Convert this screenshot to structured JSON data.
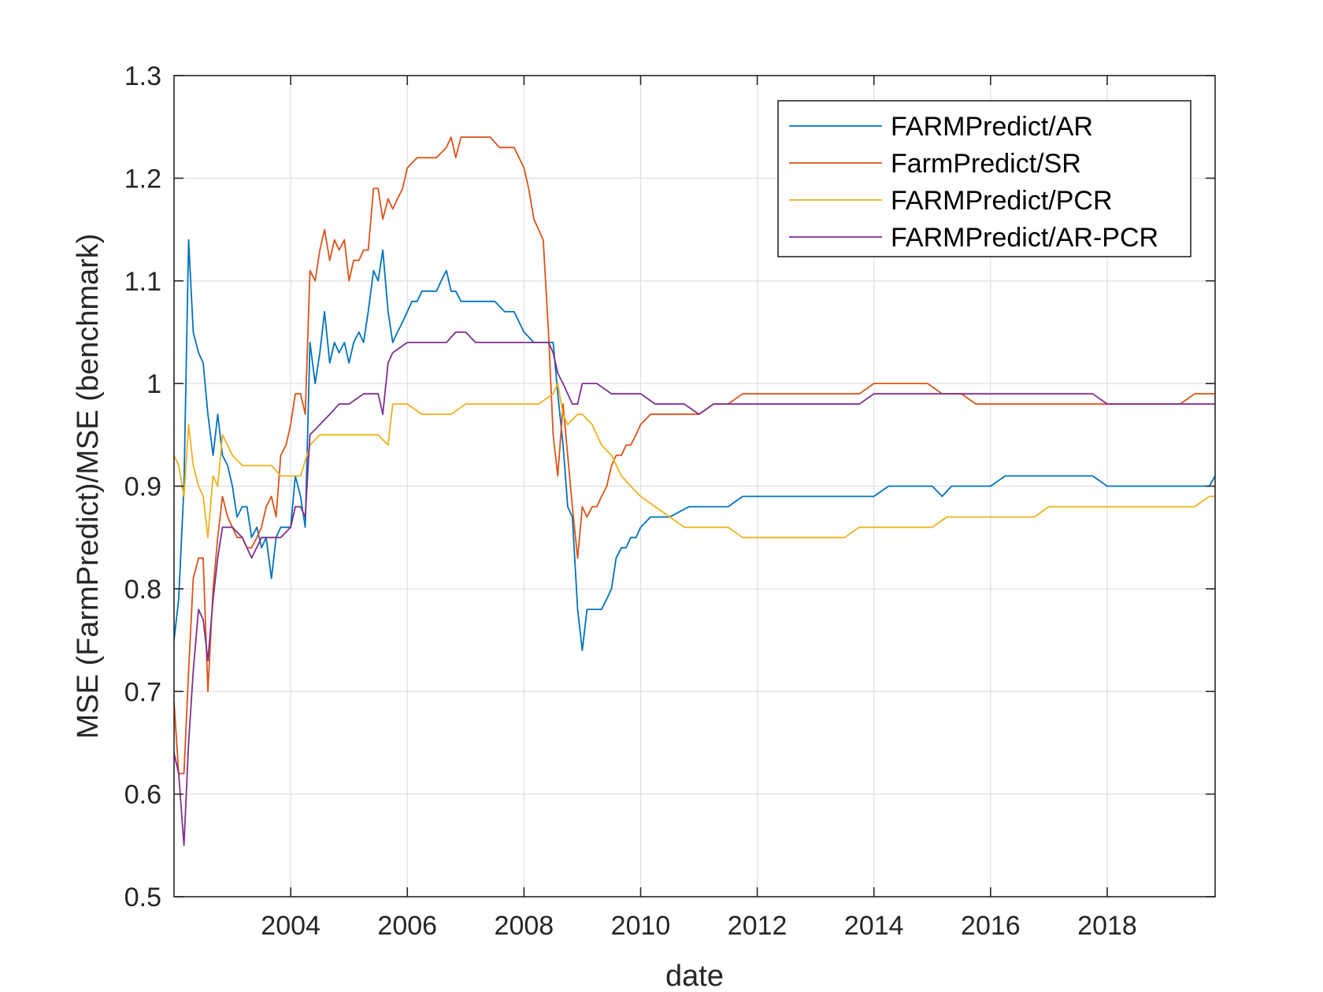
{
  "chart_data": {
    "type": "line",
    "title": "",
    "xlabel": "date",
    "ylabel": "MSE (FarmPredict)/MSE (benchmark)",
    "xlim": [
      2002.0,
      2019.85
    ],
    "ylim": [
      0.5,
      1.3
    ],
    "xticks": [
      2004,
      2006,
      2008,
      2010,
      2012,
      2014,
      2016,
      2018
    ],
    "xtick_labels": [
      "2004",
      "2006",
      "2008",
      "2010",
      "2012",
      "2014",
      "2016",
      "2018"
    ],
    "yticks": [
      0.5,
      0.6,
      0.7,
      0.8,
      0.9,
      1.0,
      1.1,
      1.2,
      1.3
    ],
    "ytick_labels": [
      "0.5",
      "0.6",
      "0.7",
      "0.8",
      "0.9",
      "1",
      "1.1",
      "1.2",
      "1.3"
    ],
    "grid": true,
    "legend_position": "top-right",
    "series": [
      {
        "name": "FARMPredict/AR",
        "color": "#0072BD",
        "x": [
          2002.0,
          2002.08,
          2002.17,
          2002.25,
          2002.33,
          2002.42,
          2002.5,
          2002.58,
          2002.67,
          2002.75,
          2002.83,
          2002.92,
          2003.0,
          2003.08,
          2003.17,
          2003.25,
          2003.33,
          2003.42,
          2003.5,
          2003.58,
          2003.67,
          2003.75,
          2003.83,
          2003.92,
          2004.0,
          2004.08,
          2004.17,
          2004.25,
          2004.33,
          2004.42,
          2004.5,
          2004.58,
          2004.67,
          2004.75,
          2004.83,
          2004.92,
          2005.0,
          2005.08,
          2005.17,
          2005.25,
          2005.33,
          2005.42,
          2005.5,
          2005.58,
          2005.67,
          2005.75,
          2005.83,
          2005.92,
          2006.0,
          2006.08,
          2006.17,
          2006.25,
          2006.33,
          2006.42,
          2006.5,
          2006.58,
          2006.67,
          2006.75,
          2006.83,
          2006.92,
          2007.0,
          2007.17,
          2007.33,
          2007.5,
          2007.67,
          2007.83,
          2008.0,
          2008.17,
          2008.33,
          2008.5,
          2008.58,
          2008.67,
          2008.75,
          2008.83,
          2008.92,
          2009.0,
          2009.08,
          2009.17,
          2009.25,
          2009.33,
          2009.42,
          2009.5,
          2009.58,
          2009.67,
          2009.75,
          2009.83,
          2009.92,
          2010.0,
          2010.17,
          2010.5,
          2010.83,
          2011.0,
          2011.25,
          2011.5,
          2011.75,
          2012.0,
          2012.25,
          2012.5,
          2012.75,
          2013.0,
          2013.25,
          2013.5,
          2013.75,
          2014.0,
          2014.25,
          2014.5,
          2014.75,
          2015.0,
          2015.17,
          2015.33,
          2015.5,
          2015.75,
          2016.0,
          2016.25,
          2016.5,
          2016.75,
          2017.0,
          2017.25,
          2017.5,
          2017.75,
          2018.0,
          2018.25,
          2018.5,
          2018.75,
          2019.0,
          2019.25,
          2019.5,
          2019.75,
          2019.85
        ],
        "y": [
          0.75,
          0.79,
          0.9,
          1.14,
          1.05,
          1.03,
          1.02,
          0.97,
          0.93,
          0.97,
          0.93,
          0.92,
          0.9,
          0.87,
          0.88,
          0.88,
          0.85,
          0.86,
          0.84,
          0.85,
          0.81,
          0.85,
          0.86,
          0.86,
          0.86,
          0.91,
          0.89,
          0.86,
          1.04,
          1.0,
          1.03,
          1.07,
          1.02,
          1.04,
          1.03,
          1.04,
          1.02,
          1.04,
          1.05,
          1.04,
          1.07,
          1.11,
          1.1,
          1.13,
          1.07,
          1.04,
          1.05,
          1.06,
          1.07,
          1.08,
          1.08,
          1.09,
          1.09,
          1.09,
          1.09,
          1.1,
          1.11,
          1.09,
          1.09,
          1.08,
          1.08,
          1.08,
          1.08,
          1.08,
          1.07,
          1.07,
          1.05,
          1.04,
          1.04,
          1.04,
          0.99,
          0.94,
          0.88,
          0.87,
          0.78,
          0.74,
          0.78,
          0.78,
          0.78,
          0.78,
          0.79,
          0.8,
          0.83,
          0.84,
          0.84,
          0.85,
          0.85,
          0.86,
          0.87,
          0.87,
          0.88,
          0.88,
          0.88,
          0.88,
          0.89,
          0.89,
          0.89,
          0.89,
          0.89,
          0.89,
          0.89,
          0.89,
          0.89,
          0.89,
          0.9,
          0.9,
          0.9,
          0.9,
          0.89,
          0.9,
          0.9,
          0.9,
          0.9,
          0.91,
          0.91,
          0.91,
          0.91,
          0.91,
          0.91,
          0.91,
          0.9,
          0.9,
          0.9,
          0.9,
          0.9,
          0.9,
          0.9,
          0.9,
          0.91
        ]
      },
      {
        "name": "FarmPredict/SR",
        "color": "#D95319",
        "x": [
          2002.0,
          2002.08,
          2002.17,
          2002.25,
          2002.33,
          2002.42,
          2002.5,
          2002.58,
          2002.67,
          2002.75,
          2002.83,
          2002.92,
          2003.0,
          2003.08,
          2003.17,
          2003.25,
          2003.33,
          2003.42,
          2003.5,
          2003.58,
          2003.67,
          2003.75,
          2003.83,
          2003.92,
          2004.0,
          2004.08,
          2004.17,
          2004.25,
          2004.33,
          2004.42,
          2004.5,
          2004.58,
          2004.67,
          2004.75,
          2004.83,
          2004.92,
          2005.0,
          2005.08,
          2005.17,
          2005.25,
          2005.33,
          2005.42,
          2005.5,
          2005.58,
          2005.67,
          2005.75,
          2005.83,
          2005.92,
          2006.0,
          2006.17,
          2006.33,
          2006.5,
          2006.67,
          2006.75,
          2006.83,
          2006.92,
          2007.0,
          2007.08,
          2007.17,
          2007.25,
          2007.42,
          2007.58,
          2007.75,
          2007.83,
          2008.0,
          2008.08,
          2008.17,
          2008.25,
          2008.33,
          2008.42,
          2008.5,
          2008.58,
          2008.67,
          2008.75,
          2008.83,
          2008.92,
          2009.0,
          2009.08,
          2009.17,
          2009.25,
          2009.33,
          2009.42,
          2009.5,
          2009.58,
          2009.67,
          2009.75,
          2009.83,
          2009.92,
          2010.0,
          2010.17,
          2010.5,
          2010.75,
          2011.0,
          2011.25,
          2011.5,
          2011.75,
          2012.0,
          2012.25,
          2012.5,
          2012.75,
          2013.0,
          2013.25,
          2013.5,
          2013.75,
          2014.0,
          2014.25,
          2014.5,
          2014.75,
          2014.92,
          2015.17,
          2015.5,
          2015.75,
          2016.0,
          2016.25,
          2016.5,
          2016.75,
          2017.0,
          2017.25,
          2017.5,
          2017.75,
          2018.0,
          2018.25,
          2018.5,
          2018.75,
          2019.0,
          2019.25,
          2019.5,
          2019.75,
          2019.85
        ],
        "y": [
          0.69,
          0.62,
          0.62,
          0.72,
          0.81,
          0.83,
          0.83,
          0.7,
          0.8,
          0.85,
          0.89,
          0.87,
          0.86,
          0.85,
          0.85,
          0.84,
          0.84,
          0.85,
          0.86,
          0.88,
          0.89,
          0.87,
          0.93,
          0.94,
          0.96,
          0.99,
          0.99,
          0.97,
          1.11,
          1.1,
          1.13,
          1.15,
          1.12,
          1.14,
          1.13,
          1.14,
          1.1,
          1.12,
          1.12,
          1.13,
          1.13,
          1.19,
          1.19,
          1.16,
          1.18,
          1.17,
          1.18,
          1.19,
          1.21,
          1.22,
          1.22,
          1.22,
          1.23,
          1.24,
          1.22,
          1.24,
          1.24,
          1.24,
          1.24,
          1.24,
          1.24,
          1.23,
          1.23,
          1.23,
          1.21,
          1.19,
          1.16,
          1.15,
          1.14,
          1.05,
          0.95,
          0.91,
          0.98,
          0.93,
          0.88,
          0.83,
          0.88,
          0.87,
          0.88,
          0.88,
          0.89,
          0.9,
          0.92,
          0.93,
          0.93,
          0.94,
          0.94,
          0.95,
          0.96,
          0.97,
          0.97,
          0.97,
          0.97,
          0.98,
          0.98,
          0.99,
          0.99,
          0.99,
          0.99,
          0.99,
          0.99,
          0.99,
          0.99,
          0.99,
          1.0,
          1.0,
          1.0,
          1.0,
          1.0,
          0.99,
          0.99,
          0.98,
          0.98,
          0.98,
          0.98,
          0.98,
          0.98,
          0.98,
          0.98,
          0.98,
          0.98,
          0.98,
          0.98,
          0.98,
          0.98,
          0.98,
          0.99,
          0.99,
          0.99
        ]
      },
      {
        "name": "FARMPredict/PCR",
        "color": "#EDB120",
        "x": [
          2002.0,
          2002.08,
          2002.17,
          2002.25,
          2002.33,
          2002.42,
          2002.5,
          2002.58,
          2002.67,
          2002.75,
          2002.83,
          2002.92,
          2003.0,
          2003.17,
          2003.33,
          2003.5,
          2003.67,
          2003.83,
          2004.0,
          2004.17,
          2004.33,
          2004.5,
          2004.67,
          2004.83,
          2005.0,
          2005.25,
          2005.5,
          2005.67,
          2005.75,
          2006.0,
          2006.25,
          2006.5,
          2006.75,
          2007.0,
          2007.25,
          2007.5,
          2007.75,
          2008.0,
          2008.25,
          2008.5,
          2008.58,
          2008.67,
          2008.75,
          2008.92,
          2009.0,
          2009.17,
          2009.33,
          2009.5,
          2009.67,
          2009.83,
          2010.0,
          2010.25,
          2010.5,
          2010.75,
          2011.0,
          2011.25,
          2011.5,
          2011.75,
          2012.0,
          2012.25,
          2012.5,
          2012.75,
          2013.0,
          2013.25,
          2013.5,
          2013.75,
          2014.0,
          2014.25,
          2014.5,
          2014.75,
          2015.0,
          2015.25,
          2015.5,
          2015.75,
          2016.0,
          2016.25,
          2016.5,
          2016.75,
          2017.0,
          2017.25,
          2017.5,
          2017.75,
          2018.0,
          2018.25,
          2018.5,
          2018.75,
          2019.0,
          2019.25,
          2019.5,
          2019.75,
          2019.85
        ],
        "y": [
          0.93,
          0.92,
          0.89,
          0.96,
          0.92,
          0.9,
          0.89,
          0.85,
          0.91,
          0.9,
          0.95,
          0.94,
          0.93,
          0.92,
          0.92,
          0.92,
          0.92,
          0.91,
          0.91,
          0.91,
          0.94,
          0.95,
          0.95,
          0.95,
          0.95,
          0.95,
          0.95,
          0.94,
          0.98,
          0.98,
          0.97,
          0.97,
          0.97,
          0.98,
          0.98,
          0.98,
          0.98,
          0.98,
          0.98,
          0.99,
          1.0,
          0.97,
          0.96,
          0.97,
          0.97,
          0.96,
          0.94,
          0.93,
          0.91,
          0.9,
          0.89,
          0.88,
          0.87,
          0.86,
          0.86,
          0.86,
          0.86,
          0.85,
          0.85,
          0.85,
          0.85,
          0.85,
          0.85,
          0.85,
          0.85,
          0.86,
          0.86,
          0.86,
          0.86,
          0.86,
          0.86,
          0.87,
          0.87,
          0.87,
          0.87,
          0.87,
          0.87,
          0.87,
          0.88,
          0.88,
          0.88,
          0.88,
          0.88,
          0.88,
          0.88,
          0.88,
          0.88,
          0.88,
          0.88,
          0.89,
          0.89
        ]
      },
      {
        "name": "FARMPredict/AR-PCR",
        "color": "#7E2F8E",
        "x": [
          2002.0,
          2002.08,
          2002.17,
          2002.25,
          2002.33,
          2002.42,
          2002.5,
          2002.58,
          2002.67,
          2002.75,
          2002.83,
          2002.92,
          2003.0,
          2003.17,
          2003.33,
          2003.5,
          2003.67,
          2003.83,
          2004.0,
          2004.08,
          2004.17,
          2004.25,
          2004.33,
          2004.5,
          2004.67,
          2004.83,
          2005.0,
          2005.25,
          2005.5,
          2005.58,
          2005.67,
          2005.75,
          2006.0,
          2006.25,
          2006.5,
          2006.67,
          2006.83,
          2007.0,
          2007.17,
          2007.5,
          2007.75,
          2008.0,
          2008.25,
          2008.42,
          2008.5,
          2008.58,
          2008.67,
          2008.75,
          2008.83,
          2008.92,
          2009.0,
          2009.08,
          2009.25,
          2009.5,
          2009.75,
          2010.0,
          2010.25,
          2010.5,
          2010.75,
          2011.0,
          2011.25,
          2011.5,
          2011.75,
          2012.0,
          2012.25,
          2012.5,
          2012.75,
          2013.0,
          2013.25,
          2013.5,
          2013.75,
          2014.0,
          2014.25,
          2014.5,
          2014.75,
          2015.0,
          2015.25,
          2015.5,
          2015.75,
          2016.0,
          2016.25,
          2016.5,
          2016.75,
          2017.0,
          2017.25,
          2017.5,
          2017.75,
          2018.0,
          2018.25,
          2018.5,
          2018.75,
          2019.0,
          2019.25,
          2019.5,
          2019.75,
          2019.85
        ],
        "y": [
          0.64,
          0.62,
          0.55,
          0.65,
          0.72,
          0.78,
          0.77,
          0.73,
          0.79,
          0.83,
          0.86,
          0.86,
          0.86,
          0.85,
          0.83,
          0.85,
          0.85,
          0.85,
          0.86,
          0.88,
          0.88,
          0.87,
          0.95,
          0.96,
          0.97,
          0.98,
          0.98,
          0.99,
          0.99,
          0.97,
          1.02,
          1.03,
          1.04,
          1.04,
          1.04,
          1.04,
          1.05,
          1.05,
          1.04,
          1.04,
          1.04,
          1.04,
          1.04,
          1.04,
          1.03,
          1.01,
          1.0,
          0.99,
          0.98,
          0.98,
          1.0,
          1.0,
          1.0,
          0.99,
          0.99,
          0.99,
          0.98,
          0.98,
          0.98,
          0.97,
          0.98,
          0.98,
          0.98,
          0.98,
          0.98,
          0.98,
          0.98,
          0.98,
          0.98,
          0.98,
          0.98,
          0.99,
          0.99,
          0.99,
          0.99,
          0.99,
          0.99,
          0.99,
          0.99,
          0.99,
          0.99,
          0.99,
          0.99,
          0.99,
          0.99,
          0.99,
          0.99,
          0.98,
          0.98,
          0.98,
          0.98,
          0.98,
          0.98,
          0.98,
          0.98,
          0.98
        ]
      }
    ]
  }
}
